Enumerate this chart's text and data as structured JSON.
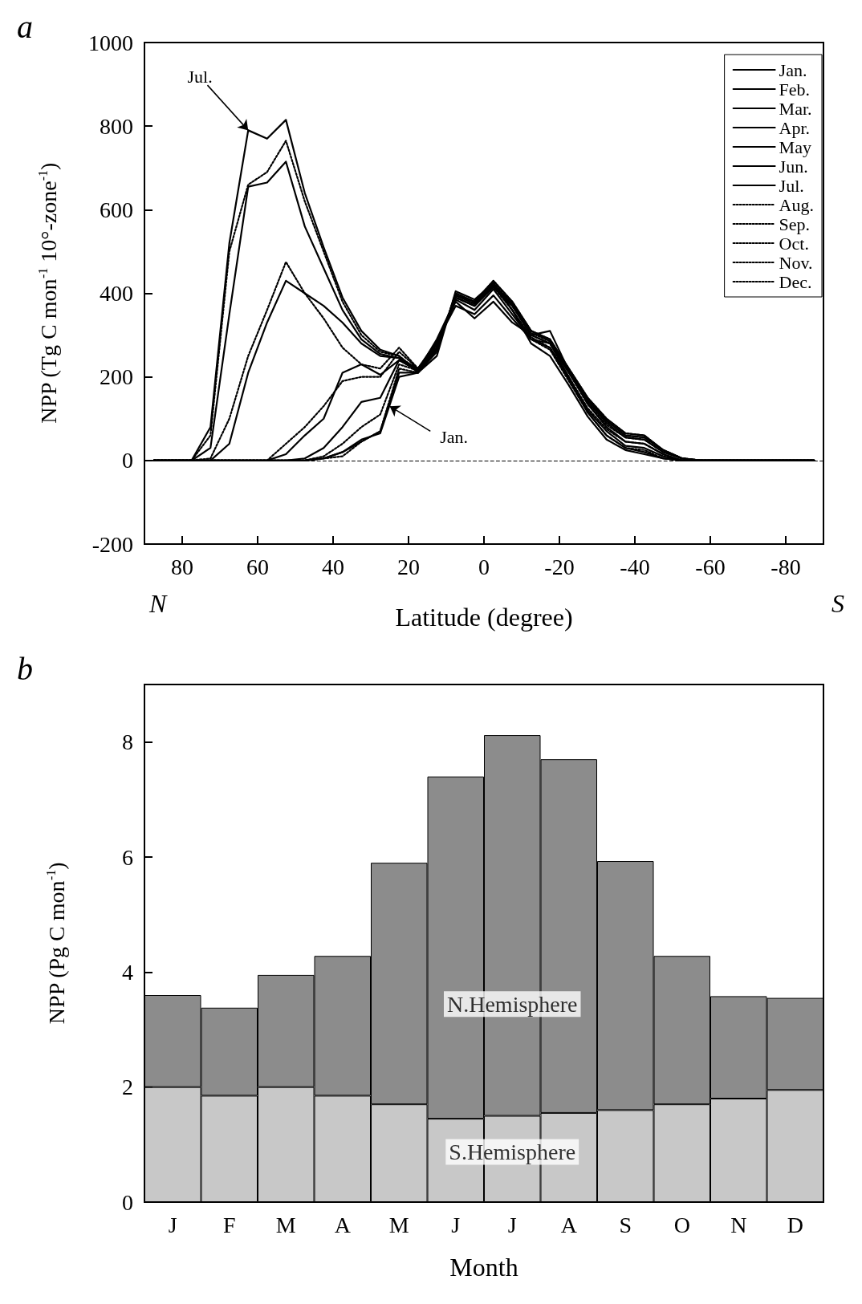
{
  "chart_data": [
    {
      "type": "line",
      "title": "a",
      "xlabel": "Latitude (degree)",
      "ylabel": "NPP (Tg C mon$^{-1}$ 10°-zone$^{-1}$)",
      "x": [
        87.5,
        82.5,
        77.5,
        72.5,
        67.5,
        62.5,
        57.5,
        52.5,
        47.5,
        42.5,
        37.5,
        32.5,
        27.5,
        22.5,
        17.5,
        12.5,
        7.5,
        2.5,
        -2.5,
        -7.5,
        -12.5,
        -17.5,
        -22.5,
        -27.5,
        -32.5,
        -37.5,
        -42.5,
        -47.5,
        -52.5,
        -57.5,
        -62.5,
        -67.5,
        -72.5,
        -77.5,
        -82.5,
        -87.5
      ],
      "series": [
        {
          "name": "Jan.",
          "color": "#000000",
          "line_style": "solid",
          "values": [
            0,
            0,
            0,
            0,
            0,
            0,
            0,
            0,
            0,
            5,
            20,
            50,
            65,
            200,
            210,
            260,
            400,
            380,
            430,
            380,
            310,
            290,
            220,
            150,
            100,
            65,
            60,
            25,
            5,
            0,
            0,
            0,
            0,
            0,
            0,
            0
          ]
        },
        {
          "name": "Feb.",
          "color": "#000000",
          "line_style": "solid",
          "values": [
            0,
            0,
            0,
            0,
            0,
            0,
            0,
            0,
            0,
            5,
            20,
            45,
            70,
            210,
            210,
            265,
            395,
            375,
            420,
            375,
            310,
            285,
            215,
            145,
            95,
            60,
            55,
            25,
            5,
            0,
            0,
            0,
            0,
            0,
            0,
            0
          ]
        },
        {
          "name": "Mar.",
          "color": "#000000",
          "line_style": "solid",
          "values": [
            0,
            0,
            0,
            0,
            0,
            0,
            0,
            0,
            5,
            30,
            80,
            140,
            150,
            240,
            215,
            270,
            390,
            370,
            415,
            370,
            300,
            280,
            210,
            140,
            90,
            55,
            50,
            20,
            5,
            0,
            0,
            0,
            0,
            0,
            0,
            0
          ]
        },
        {
          "name": "Apr.",
          "color": "#000000",
          "line_style": "solid",
          "values": [
            0,
            0,
            0,
            0,
            0,
            0,
            0,
            15,
            60,
            100,
            210,
            230,
            205,
            240,
            215,
            280,
            380,
            340,
            380,
            330,
            300,
            310,
            215,
            135,
            80,
            45,
            40,
            15,
            0,
            0,
            0,
            0,
            0,
            0,
            0,
            0
          ]
        },
        {
          "name": "May",
          "color": "#000000",
          "line_style": "solid",
          "values": [
            0,
            0,
            0,
            0,
            40,
            210,
            330,
            430,
            400,
            370,
            330,
            280,
            250,
            245,
            220,
            285,
            370,
            350,
            395,
            340,
            290,
            280,
            200,
            120,
            70,
            35,
            30,
            10,
            0,
            0,
            0,
            0,
            0,
            0,
            0,
            0
          ]
        },
        {
          "name": "Jun.",
          "color": "#000000",
          "line_style": "solid",
          "values": [
            0,
            0,
            0,
            30,
            350,
            655,
            665,
            715,
            560,
            460,
            360,
            290,
            255,
            245,
            215,
            290,
            385,
            360,
            410,
            350,
            290,
            270,
            195,
            115,
            60,
            30,
            20,
            5,
            0,
            0,
            0,
            0,
            0,
            0,
            0,
            0
          ]
        },
        {
          "name": "Jul.",
          "color": "#000000",
          "line_style": "solid",
          "values": [
            0,
            0,
            0,
            80,
            520,
            790,
            770,
            815,
            640,
            510,
            390,
            310,
            265,
            250,
            210,
            250,
            405,
            385,
            425,
            360,
            280,
            250,
            180,
            105,
            50,
            25,
            15,
            5,
            0,
            0,
            0,
            0,
            0,
            0,
            0,
            0
          ]
        },
        {
          "name": "Aug.",
          "color": "#000000",
          "line_style": "dotted",
          "values": [
            0,
            0,
            0,
            60,
            500,
            660,
            690,
            765,
            620,
            500,
            380,
            300,
            260,
            250,
            215,
            270,
            395,
            380,
            420,
            360,
            290,
            265,
            190,
            115,
            60,
            30,
            25,
            5,
            0,
            0,
            0,
            0,
            0,
            0,
            0,
            0
          ]
        },
        {
          "name": "Sep.",
          "color": "#000000",
          "line_style": "dotted",
          "values": [
            0,
            0,
            0,
            5,
            100,
            250,
            360,
            475,
            400,
            340,
            270,
            230,
            220,
            270,
            220,
            280,
            390,
            370,
            415,
            360,
            295,
            270,
            200,
            125,
            75,
            45,
            40,
            15,
            0,
            0,
            0,
            0,
            0,
            0,
            0,
            0
          ]
        },
        {
          "name": "Oct.",
          "color": "#000000",
          "line_style": "dotted",
          "values": [
            0,
            0,
            0,
            0,
            0,
            0,
            0,
            40,
            80,
            130,
            190,
            200,
            200,
            260,
            220,
            275,
            390,
            370,
            420,
            370,
            300,
            280,
            210,
            135,
            85,
            55,
            50,
            20,
            5,
            0,
            0,
            0,
            0,
            0,
            0,
            0
          ]
        },
        {
          "name": "Nov.",
          "color": "#000000",
          "line_style": "dotted",
          "values": [
            0,
            0,
            0,
            0,
            0,
            0,
            0,
            0,
            0,
            10,
            40,
            80,
            110,
            230,
            215,
            270,
            395,
            375,
            425,
            375,
            305,
            285,
            215,
            145,
            95,
            60,
            55,
            25,
            5,
            0,
            0,
            0,
            0,
            0,
            0,
            0
          ]
        },
        {
          "name": "Dec.",
          "color": "#000000",
          "line_style": "dotted",
          "values": [
            0,
            0,
            0,
            0,
            0,
            0,
            0,
            0,
            0,
            5,
            10,
            45,
            70,
            220,
            210,
            265,
            400,
            380,
            430,
            380,
            310,
            290,
            220,
            150,
            100,
            65,
            60,
            25,
            5,
            0,
            0,
            0,
            0,
            0,
            0,
            0
          ]
        }
      ],
      "xlim": [
        90,
        -90
      ],
      "xticks": [
        80,
        60,
        40,
        20,
        0,
        -20,
        -40,
        -60,
        -80
      ],
      "ylim": [
        -200,
        1000
      ],
      "yticks": [
        -200,
        0,
        200,
        400,
        600,
        800,
        1000
      ],
      "ref_lines": [
        {
          "axis": "y",
          "value": 0,
          "line_style": "dashed"
        }
      ],
      "annotations": [
        {
          "text": "Jul.",
          "x": 62.5,
          "y": 790
        },
        {
          "text": "Jan.",
          "x": 25,
          "y": 130
        },
        "N",
        "S"
      ],
      "grid": false,
      "legend": "top right",
      "marker": "none"
    },
    {
      "type": "bar",
      "title": "b",
      "xlabel": "Month",
      "ylabel": "NPP (Pg C mon$^{-1}$)",
      "stacked": true,
      "categories": [
        "J",
        "F",
        "M",
        "A",
        "M",
        "J",
        "J",
        "A",
        "S",
        "O",
        "N",
        "D"
      ],
      "series": [
        {
          "name": "S.Hemisphere",
          "color": "#c8c8c8",
          "values": [
            2.0,
            1.85,
            2.0,
            1.85,
            1.7,
            1.45,
            1.5,
            1.55,
            1.6,
            1.7,
            1.8,
            1.95
          ]
        },
        {
          "name": "N.Hemisphere",
          "color": "#8c8c8c",
          "values": [
            1.6,
            1.53,
            1.95,
            2.43,
            4.2,
            5.95,
            6.62,
            6.15,
            4.33,
            2.58,
            1.78,
            1.6
          ]
        }
      ],
      "ylim": [
        0,
        9
      ],
      "yticks": [
        0,
        2,
        4,
        6,
        8
      ],
      "grid": false,
      "legend": false
    }
  ]
}
